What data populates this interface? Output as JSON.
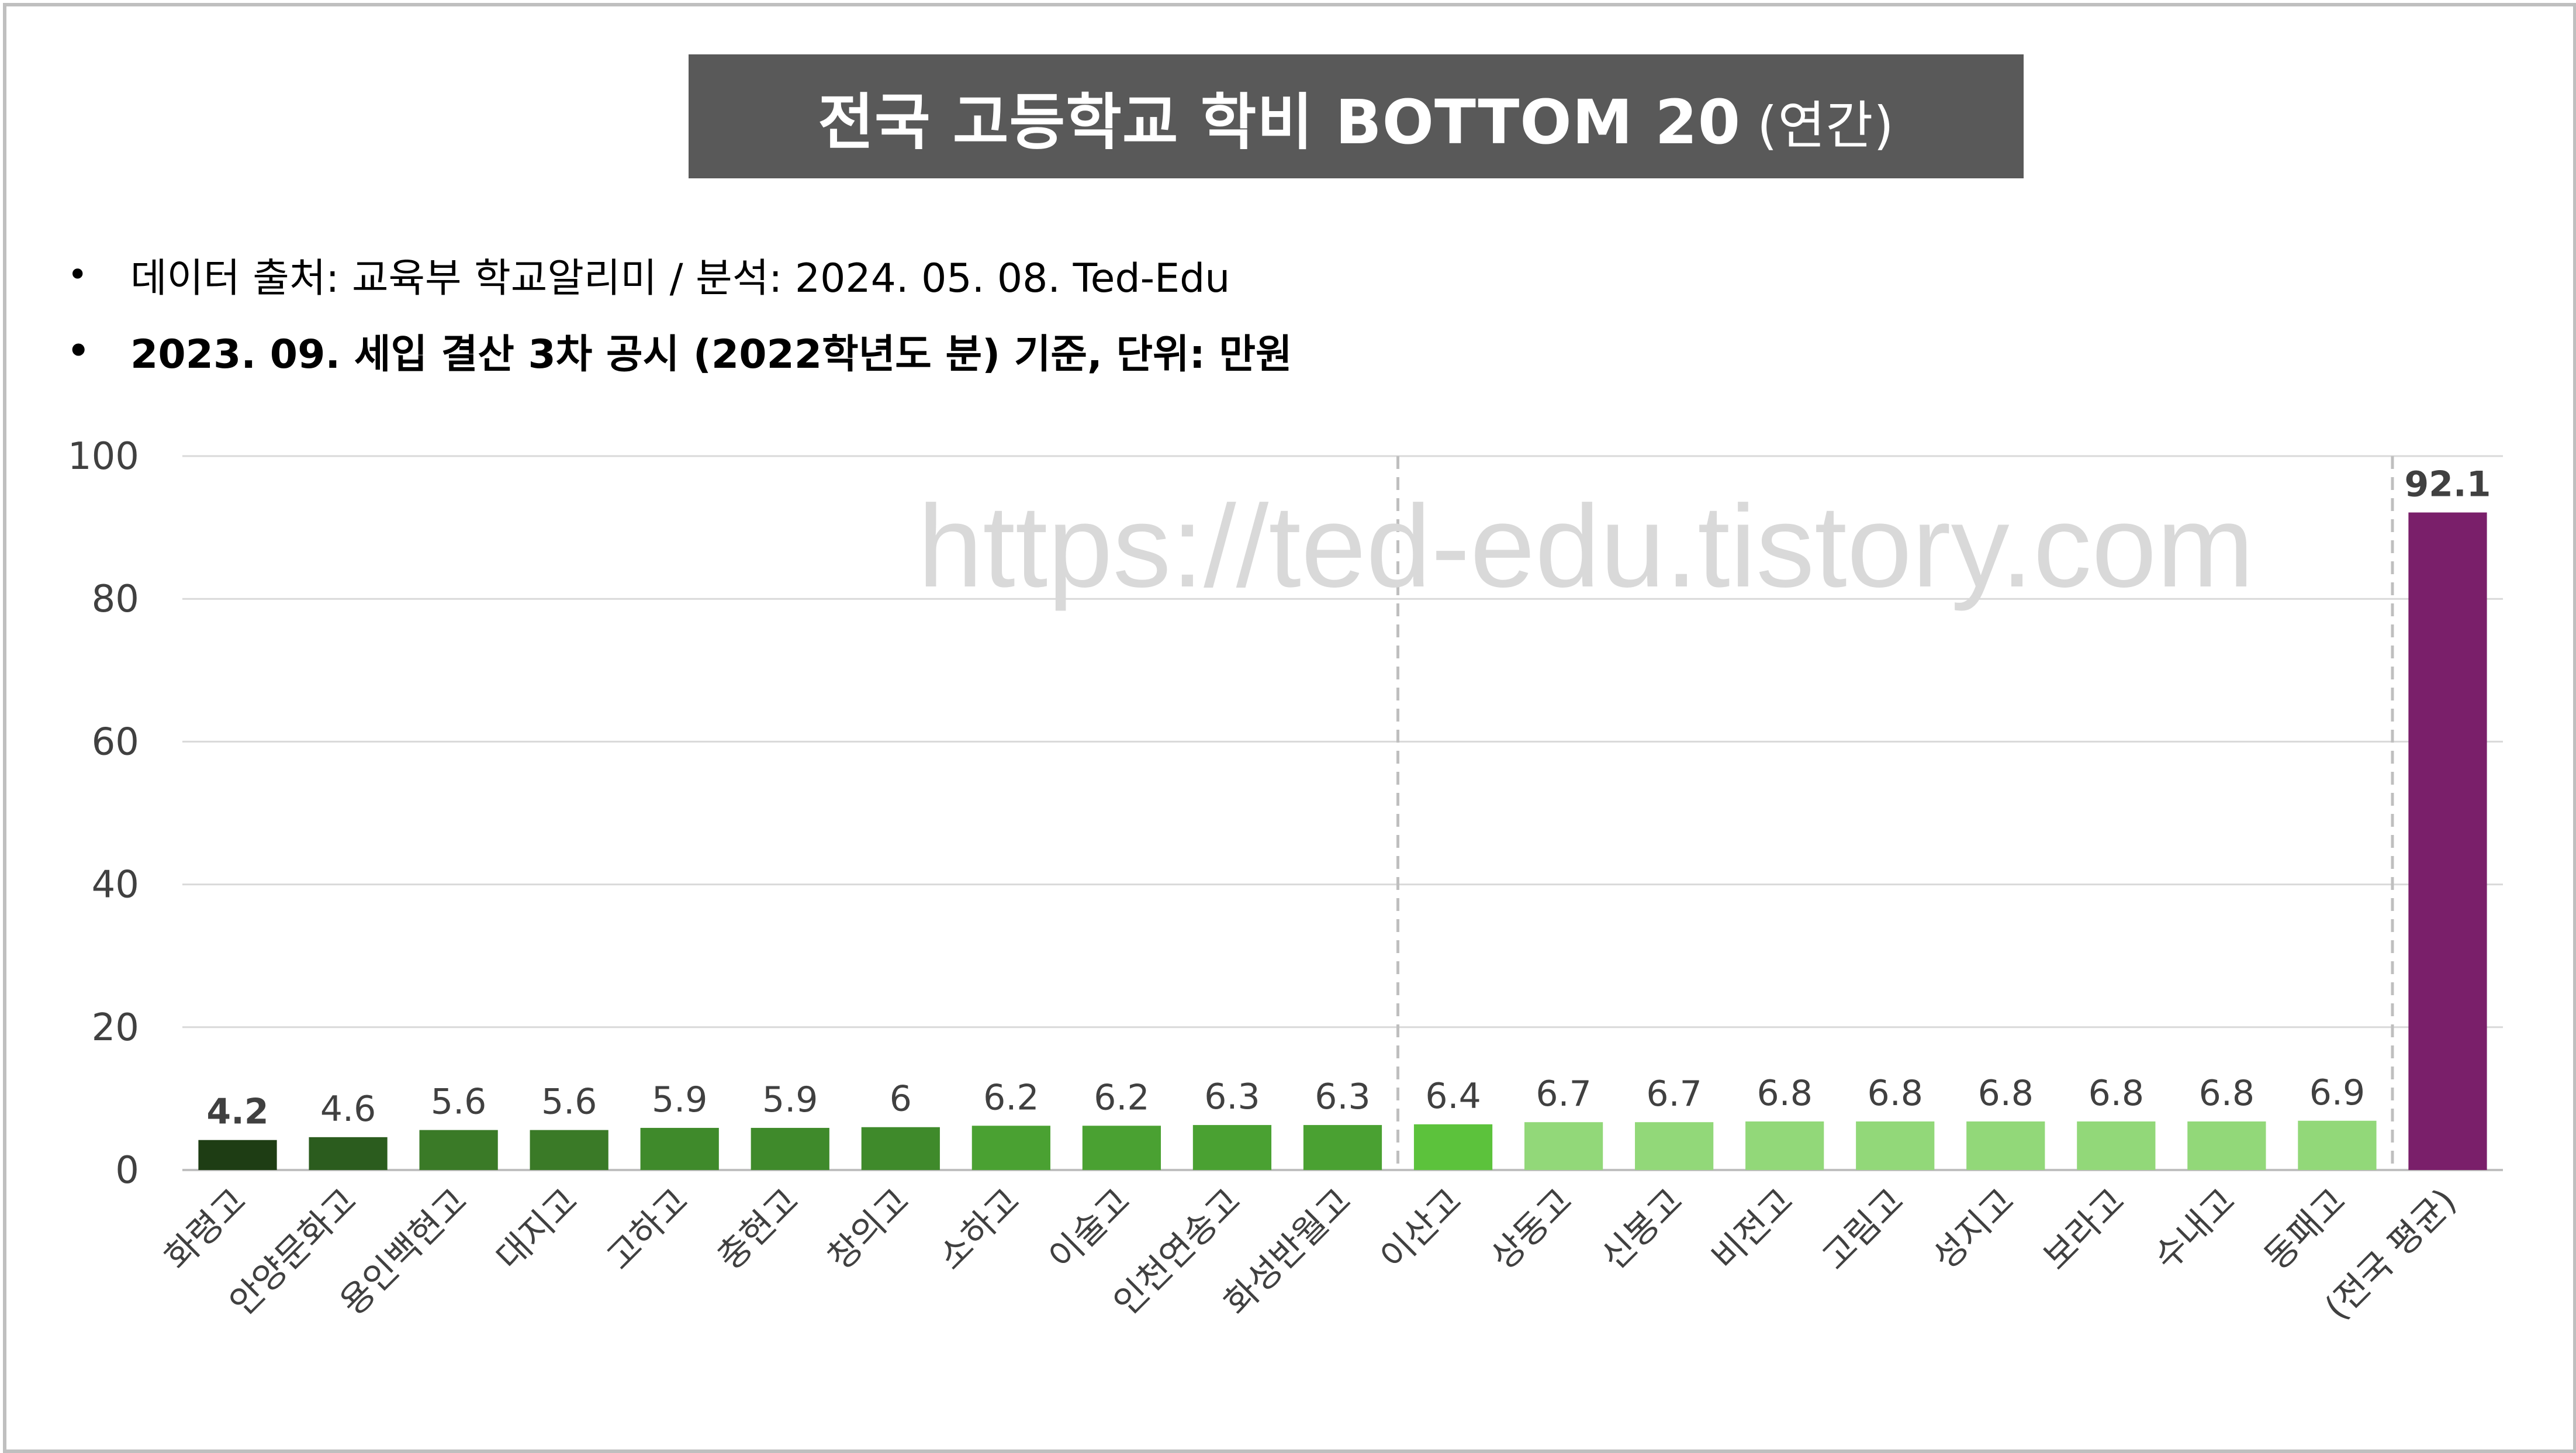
{
  "title": {
    "main": "전국 고등학교 학비 BOTTOM 20",
    "suffix": "(연간)"
  },
  "notes": [
    {
      "bullet": "•",
      "text": "데이터 출처: 교육부 학교알리미 / 분석: 2024. 05. 08. Ted-Edu"
    },
    {
      "bullet": "•",
      "text": "2023. 09. 세입 결산 3차 공시 (2022학년도 분) 기준, 단위: 만원"
    }
  ],
  "watermark": "https://ted-edu.tistory.com",
  "chart_data": {
    "type": "bar",
    "title": "",
    "xlabel": "",
    "ylabel": "",
    "ylim": [
      0,
      100
    ],
    "yticks": [
      0,
      20,
      40,
      60,
      80,
      100
    ],
    "grid": true,
    "categories": [
      "화령고",
      "안양문화고",
      "용인백현고",
      "대지고",
      "고하고",
      "충현고",
      "창의고",
      "소하고",
      "이술고",
      "인천연송고",
      "화성반월고",
      "이산고",
      "상동고",
      "신봉고",
      "비전고",
      "고림고",
      "성지고",
      "보라고",
      "수내고",
      "동패고",
      "(전국 평균)"
    ],
    "values": [
      4.2,
      4.6,
      5.6,
      5.6,
      5.9,
      5.9,
      6,
      6.2,
      6.2,
      6.3,
      6.3,
      6.4,
      6.7,
      6.7,
      6.8,
      6.8,
      6.8,
      6.8,
      6.8,
      6.9,
      92.1
    ],
    "value_labels": [
      "4.2",
      "4.6",
      "5.6",
      "5.6",
      "5.9",
      "5.9",
      "6",
      "6.2",
      "6.2",
      "6.3",
      "6.3",
      "6.4",
      "6.7",
      "6.7",
      "6.8",
      "6.8",
      "6.8",
      "6.8",
      "6.8",
      "6.9",
      "92.1"
    ],
    "bold_labels": [
      0,
      20
    ],
    "colors": [
      "#1e3d14",
      "#2b5c1e",
      "#3a7a27",
      "#3a7a27",
      "#3f8a2b",
      "#3f8a2b",
      "#3f8a2b",
      "#4aa132",
      "#4aa132",
      "#4aa132",
      "#4aa132",
      "#5cc23c",
      "#92d879",
      "#92d879",
      "#92d879",
      "#92d879",
      "#92d879",
      "#92d879",
      "#92d879",
      "#92d879",
      "#7a1f6a"
    ],
    "dashed_divider_after": [
      10,
      19
    ]
  }
}
